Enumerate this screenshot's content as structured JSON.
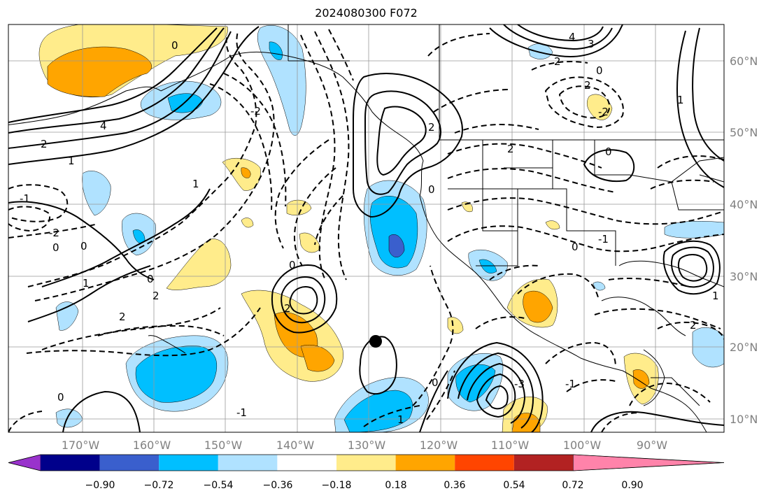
{
  "map": {
    "title": "2024080300 F072",
    "lat_labels": [
      "60°N",
      "50°N",
      "40°N",
      "30°N",
      "20°N",
      "10°N"
    ],
    "lon_labels": [
      "170°W",
      "160°W",
      "150°W",
      "140°W",
      "130°W",
      "120°W",
      "110°W",
      "100°W",
      "90°W"
    ],
    "contour_labels": [
      "0",
      "0",
      "2",
      "4",
      "1",
      "-1",
      "-2",
      "0",
      "1",
      "2",
      "2",
      "0",
      "1",
      "-2",
      "3",
      "4",
      "2",
      "0",
      "2",
      "2",
      "0",
      "-1",
      "2",
      "-2",
      "1",
      "0",
      "0",
      "-1",
      "-3",
      "2",
      "0",
      "-1",
      "0",
      "1",
      "0",
      "2",
      "1"
    ]
  },
  "colorbar": {
    "ticks": [
      "−0.90",
      "−0.72",
      "−0.54",
      "−0.36",
      "−0.18",
      "0.18",
      "0.36",
      "0.54",
      "0.72",
      "0.90"
    ],
    "colors": [
      "#9932cc",
      "#00008b",
      "#3a5fcd",
      "#00bfff",
      "#b0e2ff",
      "#ffffff",
      "#ffec8b",
      "#ffa500",
      "#ff4500",
      "#b22222",
      "#ff83aa"
    ]
  }
}
